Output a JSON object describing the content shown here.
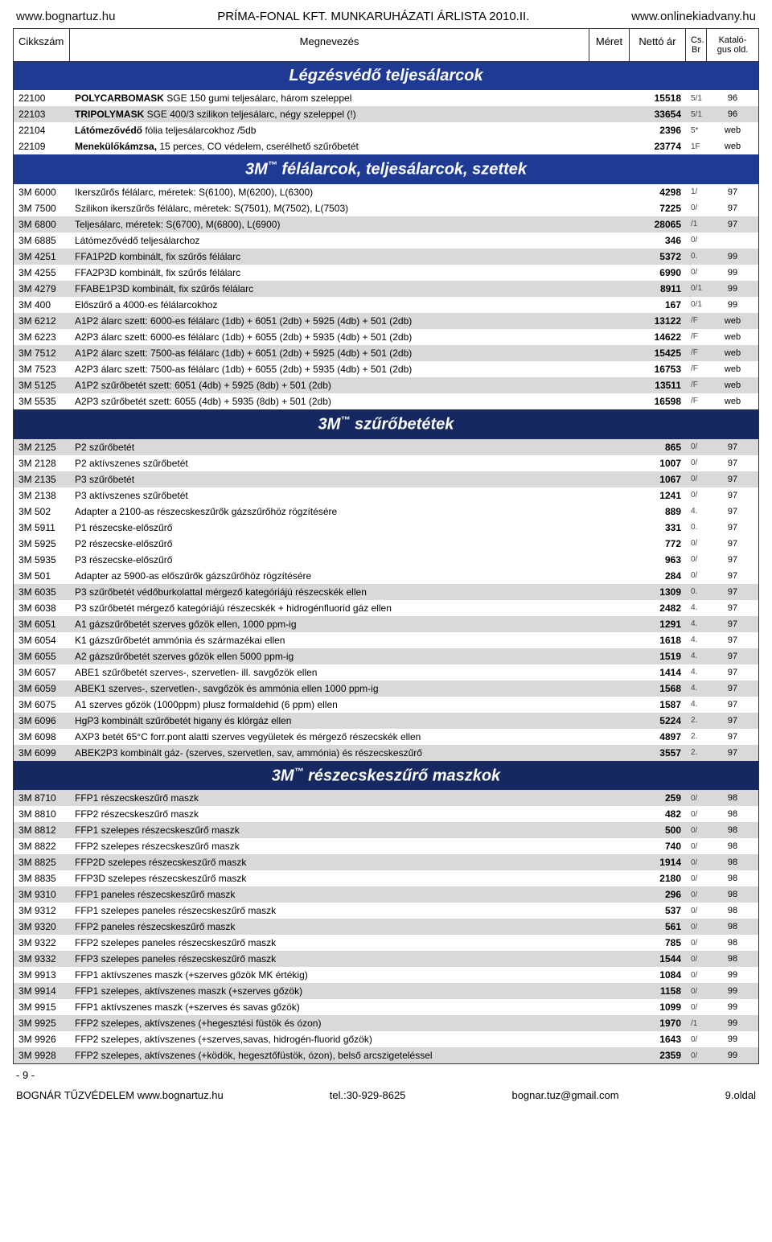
{
  "header": {
    "left": "www.bognartuz.hu",
    "mid": "PRÍMA-FONAL KFT. MUNKARUHÁZATI ÁRLISTA 2010.II.",
    "right": "www.onlinekiadvany.hu"
  },
  "columns": {
    "code": "Cikkszám",
    "name": "Megnevezés",
    "size": "Méret",
    "price": "Nettó ár",
    "cs": "Cs. Br",
    "cat": "Kataló-gus old."
  },
  "sections": [
    {
      "title": "Légzésvédő teljesálarcok",
      "rows": [
        {
          "shade": false,
          "code": "22100",
          "name_html": "<b>POLYCARBOMASK</b> SGE 150 gumi teljesálarc, három szeleppel",
          "price": "15518",
          "cs": "5/1",
          "cat": "96"
        },
        {
          "shade": true,
          "code": "22103",
          "name_html": "<b>TRIPOLYMASK</b> SGE 400/3 szilikon teljesálarc, négy szeleppel (!)",
          "price": "33654",
          "cs": "5/1",
          "cat": "96"
        },
        {
          "shade": false,
          "code": "22104",
          "name_html": "<b>Látómezővédő</b> fólia teljesálarcokhoz  /5db",
          "price": "2396",
          "cs": "5*",
          "cat": "web"
        },
        {
          "shade": false,
          "code": "22109",
          "name_html": "<b>Menekülőkámzsa,</b> 15 perces, CO védelem, cserélhető szűrőbetét",
          "price": "23774",
          "cs": "1F",
          "cat": "web"
        }
      ]
    },
    {
      "title_html": "3M<sup>™</sup> félálarcok, teljesálarcok, szettek",
      "rows": [
        {
          "shade": false,
          "code": "3M 6000",
          "name_html": "Ikerszűrős félálarc, méretek: S(6100), M(6200), L(6300)",
          "price": "4298",
          "cs": "1/",
          "cat": "97"
        },
        {
          "shade": false,
          "code": "3M 7500",
          "name_html": "Szilikon ikerszűrős félálarc, méretek: S(7501), M(7502), L(7503)",
          "price": "7225",
          "cs": "0/",
          "cat": "97"
        },
        {
          "shade": true,
          "code": "3M 6800",
          "name_html": "Teljesálarc, méretek: S(6700), M(6800), L(6900)",
          "price": "28065",
          "cs": "/1",
          "cat": "97"
        },
        {
          "shade": false,
          "code": "3M 6885",
          "name_html": "Látómezővédő teljesálarchoz",
          "price": "346",
          "cs": "0/",
          "cat": ""
        },
        {
          "shade": true,
          "code": "3M 4251",
          "name_html": "FFA1P2D kombinált, fix szűrős félálarc",
          "price": "5372",
          "cs": "0.",
          "cat": "99"
        },
        {
          "shade": false,
          "code": "3M 4255",
          "name_html": "FFA2P3D kombinált, fix szűrős félálarc",
          "price": "6990",
          "cs": "0/",
          "cat": "99"
        },
        {
          "shade": true,
          "code": "3M 4279",
          "name_html": "FFABE1P3D kombinált, fix szűrős félálarc",
          "price": "8911",
          "cs": "0/1",
          "cat": "99"
        },
        {
          "shade": false,
          "code": "3M 400",
          "name_html": "Előszűrő a 4000-es félálarcokhoz",
          "price": "167",
          "cs": "0/1",
          "cat": "99"
        },
        {
          "shade": true,
          "code": "3M 6212",
          "name_html": "A1P2 álarc szett:  6000-es félálarc (1db) + 6051 (2db) + 5925 (4db) + 501 (2db)",
          "price": "13122",
          "cs": "/F",
          "cat": "web"
        },
        {
          "shade": false,
          "code": "3M 6223",
          "name_html": "A2P3 álarc szett:  6000-es félálarc (1db) + 6055 (2db) + 5935 (4db) + 501 (2db)",
          "price": "14622",
          "cs": "/F",
          "cat": "web"
        },
        {
          "shade": true,
          "code": "3M 7512",
          "name_html": "A1P2 álarc szett:  7500-as félálarc (1db) + 6051 (2db) + 5925 (4db) + 501 (2db)",
          "price": "15425",
          "cs": "/F",
          "cat": "web"
        },
        {
          "shade": false,
          "code": "3M 7523",
          "name_html": "A2P3 álarc szett:  7500-as félálarc (1db) + 6055 (2db) + 5935 (4db) + 501 (2db)",
          "price": "16753",
          "cs": "/F",
          "cat": "web"
        },
        {
          "shade": true,
          "code": "3M 5125",
          "name_html": "A1P2 szűrőbetét szett:  6051 (4db) + 5925 (8db) + 501 (2db)",
          "price": "13511",
          "cs": "/F",
          "cat": "web"
        },
        {
          "shade": false,
          "code": "3M 5535",
          "name_html": "A2P3 szűrőbetét szett:  6055 (4db) + 5935 (8db) + 501 (2db)",
          "price": "16598",
          "cs": "/F",
          "cat": "web"
        }
      ]
    },
    {
      "title_html": "3M<sup>™</sup> szűrőbetétek",
      "band_class": "dark",
      "rows": [
        {
          "shade": true,
          "code": "3M 2125",
          "name_html": "P2 szűrőbetét",
          "price": "865",
          "cs": "0/",
          "cat": "97"
        },
        {
          "shade": false,
          "code": "3M 2128",
          "name_html": "P2 aktívszenes szűrőbetét",
          "price": "1007",
          "cs": "0/",
          "cat": "97"
        },
        {
          "shade": true,
          "code": "3M 2135",
          "name_html": "P3 szűrőbetét",
          "price": "1067",
          "cs": "0/",
          "cat": "97"
        },
        {
          "shade": false,
          "code": "3M 2138",
          "name_html": "P3 aktívszenes szűrőbetét",
          "price": "1241",
          "cs": "0/",
          "cat": "97"
        },
        {
          "shade": false,
          "code": "3M 502",
          "name_html": "Adapter a 2100-as részecskeszűrők gázszűrőhöz rögzítésére",
          "price": "889",
          "cs": "4.",
          "cat": "97"
        },
        {
          "shade": false,
          "code": "3M 5911",
          "name_html": "P1 részecske-előszűrő",
          "price": "331",
          "cs": "0.",
          "cat": "97"
        },
        {
          "shade": false,
          "code": "3M 5925",
          "name_html": "P2 részecske-előszűrő",
          "price": "772",
          "cs": "0/",
          "cat": "97"
        },
        {
          "shade": false,
          "code": "3M 5935",
          "name_html": "P3 részecske-előszűrő",
          "price": "963",
          "cs": "0/",
          "cat": "97"
        },
        {
          "shade": false,
          "code": "3M 501",
          "name_html": "Adapter az 5900-as előszűrők gázszűrőhöz rögzítésére",
          "price": "284",
          "cs": "0/",
          "cat": "97"
        },
        {
          "shade": true,
          "code": "3M 6035",
          "name_html": "P3 szűrőbetét védőburkolattal mérgező kategóriájú részecskék ellen",
          "price": "1309",
          "cs": "0.",
          "cat": "97"
        },
        {
          "shade": false,
          "code": "3M 6038",
          "name_html": "P3 szűrőbetét mérgező kategóriájú részecskék + hidrogénfluorid gáz ellen",
          "price": "2482",
          "cs": "4.",
          "cat": "97"
        },
        {
          "shade": true,
          "code": "3M 6051",
          "name_html": "A1 gázszűrőbetét szerves gőzök ellen, 1000 ppm-ig",
          "price": "1291",
          "cs": "4.",
          "cat": "97"
        },
        {
          "shade": false,
          "code": "3M 6054",
          "name_html": "K1 gázszűrőbetét ammónia és származékai ellen",
          "price": "1618",
          "cs": "4.",
          "cat": "97"
        },
        {
          "shade": true,
          "code": "3M 6055",
          "name_html": "A2 gázszűrőbetét szerves gőzök ellen 5000 ppm-ig",
          "price": "1519",
          "cs": "4.",
          "cat": "97"
        },
        {
          "shade": false,
          "code": "3M 6057",
          "name_html": "ABE1 szűrőbetét szerves-, szervetlen- ill. savgőzök ellen",
          "price": "1414",
          "cs": "4.",
          "cat": "97"
        },
        {
          "shade": true,
          "code": "3M 6059",
          "name_html": "ABEK1 szerves-, szervetlen-, savgőzök és ammónia ellen 1000 ppm-ig",
          "price": "1568",
          "cs": "4.",
          "cat": "97"
        },
        {
          "shade": false,
          "code": "3M 6075",
          "name_html": "A1 szerves gőzök (1000ppm) plusz formaldehid (6 ppm) ellen",
          "price": "1587",
          "cs": "4.",
          "cat": "97"
        },
        {
          "shade": true,
          "code": "3M 6096",
          "name_html": "HgP3 kombinált szűrőbetét higany és klórgáz ellen",
          "price": "5224",
          "cs": "2.",
          "cat": "97"
        },
        {
          "shade": false,
          "code": "3M 6098",
          "name_html": "AXP3 betét 65°C forr.pont alatti szerves vegyületek és mérgező részecskék ellen",
          "price": "4897",
          "cs": "2.",
          "cat": "97"
        },
        {
          "shade": true,
          "code": "3M 6099",
          "name_html": "ABEK2P3 kombinált gáz- (szerves, szervetlen, sav, ammónia) és részecskeszűrő",
          "price": "3557",
          "cs": "2.",
          "cat": "97"
        }
      ]
    },
    {
      "title_html": "3M<sup>™</sup> részecskeszűrő maszkok",
      "band_class": "dark",
      "rows": [
        {
          "shade": true,
          "code": "3M 8710",
          "name_html": "FFP1 részecskeszűrő maszk",
          "price": "259",
          "cs": "0/",
          "cat": "98"
        },
        {
          "shade": false,
          "code": "3M 8810",
          "name_html": "FFP2 részecskeszűrő maszk",
          "price": "482",
          "cs": "0/",
          "cat": "98"
        },
        {
          "shade": true,
          "code": "3M 8812",
          "name_html": "FFP1 szelepes részecskeszűrő maszk",
          "price": "500",
          "cs": "0/",
          "cat": "98"
        },
        {
          "shade": false,
          "code": "3M 8822",
          "name_html": "FFP2 szelepes részecskeszűrő maszk",
          "price": "740",
          "cs": "0/",
          "cat": "98"
        },
        {
          "shade": true,
          "code": "3M 8825",
          "name_html": "FFP2D szelepes részecskeszűrő maszk",
          "price": "1914",
          "cs": "0/",
          "cat": "98"
        },
        {
          "shade": false,
          "code": "3M 8835",
          "name_html": "FFP3D szelepes részecskeszűrő maszk",
          "price": "2180",
          "cs": "0/",
          "cat": "98"
        },
        {
          "shade": true,
          "code": "3M 9310",
          "name_html": "FFP1 paneles részecskeszűrő maszk",
          "price": "296",
          "cs": "0/",
          "cat": "98"
        },
        {
          "shade": false,
          "code": "3M 9312",
          "name_html": "FFP1 szelepes paneles részecskeszűrő maszk",
          "price": "537",
          "cs": "0/",
          "cat": "98"
        },
        {
          "shade": true,
          "code": "3M 9320",
          "name_html": "FFP2 paneles részecskeszűrő maszk",
          "price": "561",
          "cs": "0/",
          "cat": "98"
        },
        {
          "shade": false,
          "code": "3M 9322",
          "name_html": "FFP2 szelepes paneles részecskeszűrő maszk",
          "price": "785",
          "cs": "0/",
          "cat": "98"
        },
        {
          "shade": true,
          "code": "3M 9332",
          "name_html": "FFP3 szelepes paneles részecskeszűrő maszk",
          "price": "1544",
          "cs": "0/",
          "cat": "98"
        },
        {
          "shade": false,
          "code": "3M 9913",
          "name_html": "FFP1 aktívszenes maszk (+szerves gőzök MK értékig)",
          "price": "1084",
          "cs": "0/",
          "cat": "99"
        },
        {
          "shade": true,
          "code": "3M 9914",
          "name_html": "FFP1 szelepes, aktívszenes maszk (+szerves gőzök)",
          "price": "1158",
          "cs": "0/",
          "cat": "99"
        },
        {
          "shade": false,
          "code": "3M 9915",
          "name_html": "FFP1 aktívszenes maszk (+szerves és savas gőzök)",
          "price": "1099",
          "cs": "0/",
          "cat": "99"
        },
        {
          "shade": true,
          "code": "3M 9925",
          "name_html": "FFP2 szelepes, aktívszenes (+hegesztési füstök és ózon)",
          "price": "1970",
          "cs": "/1",
          "cat": "99"
        },
        {
          "shade": false,
          "code": "3M 9926",
          "name_html": "FFP2 szelepes, aktívszenes (+szerves,savas, hidrogén-fluorid gőzök)",
          "price": "1643",
          "cs": "0/",
          "cat": "99"
        },
        {
          "shade": true,
          "code": "3M 9928",
          "name_html": "FFP2 szelepes, aktívszenes (+ködök, hegesztőfüstök, ózon), belső arcszigeteléssel",
          "price": "2359",
          "cs": "0/",
          "cat": "99"
        }
      ]
    }
  ],
  "footer": {
    "left_num": "- 9 -",
    "company": "BOGNÁR TŰZVÉDELEM  www.bognartuz.hu",
    "tel": "tel.:30-929-8625",
    "email": "bognar.tuz@gmail.com",
    "page": "9.oldal"
  }
}
